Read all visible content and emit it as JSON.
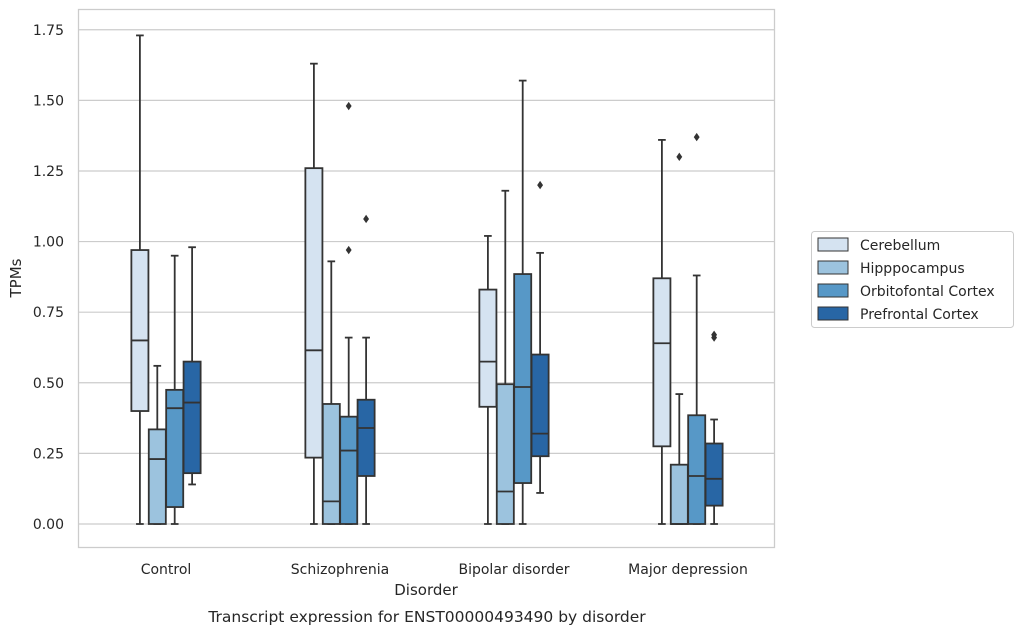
{
  "chart_data": {
    "type": "box",
    "ylabel": "TPMs",
    "xlabel": "Disorder",
    "caption": "Transcript expression for ENST00000493490 by disorder",
    "ylim": [
      -0.085,
      1.82
    ],
    "yticks": [
      0.0,
      0.25,
      0.5,
      0.75,
      1.0,
      1.25,
      1.5,
      1.75
    ],
    "ytick_labels": [
      "0.00",
      "0.25",
      "0.50",
      "0.75",
      "1.00",
      "1.25",
      "1.50",
      "1.75"
    ],
    "grid": "horizontal",
    "legend_position": "right",
    "categories": [
      "Control",
      "Schizophrenia",
      "Bipolar disorder",
      "Major depression"
    ],
    "series": [
      {
        "name": "Cerebellum",
        "color": "#d5e3f1",
        "boxes": [
          {
            "whisker_low": 0.0,
            "q1": 0.4,
            "median": 0.65,
            "q3": 0.97,
            "whisker_high": 1.73,
            "outliers": []
          },
          {
            "whisker_low": 0.0,
            "q1": 0.235,
            "median": 0.615,
            "q3": 1.26,
            "whisker_high": 1.63,
            "outliers": []
          },
          {
            "whisker_low": 0.0,
            "q1": 0.415,
            "median": 0.575,
            "q3": 0.83,
            "whisker_high": 1.02,
            "outliers": []
          },
          {
            "whisker_low": 0.0,
            "q1": 0.275,
            "median": 0.64,
            "q3": 0.87,
            "whisker_high": 1.36,
            "outliers": []
          }
        ]
      },
      {
        "name": "Hipppocampus",
        "color": "#9cc3de",
        "boxes": [
          {
            "whisker_low": 0.0,
            "q1": 0.0,
            "median": 0.23,
            "q3": 0.335,
            "whisker_high": 0.56,
            "outliers": []
          },
          {
            "whisker_low": 0.0,
            "q1": 0.0,
            "median": 0.08,
            "q3": 0.425,
            "whisker_high": 0.93,
            "outliers": []
          },
          {
            "whisker_low": 0.0,
            "q1": 0.0,
            "median": 0.115,
            "q3": 0.495,
            "whisker_high": 1.18,
            "outliers": []
          },
          {
            "whisker_low": 0.0,
            "q1": 0.0,
            "median": 0.0,
            "q3": 0.21,
            "whisker_high": 0.46,
            "outliers": [
              1.3
            ]
          }
        ]
      },
      {
        "name": "Orbitofontal Cortex",
        "color": "#5798c7",
        "boxes": [
          {
            "whisker_low": 0.0,
            "q1": 0.06,
            "median": 0.41,
            "q3": 0.475,
            "whisker_high": 0.95,
            "outliers": []
          },
          {
            "whisker_low": 0.0,
            "q1": 0.0,
            "median": 0.26,
            "q3": 0.38,
            "whisker_high": 0.66,
            "outliers": [
              0.97,
              1.48
            ]
          },
          {
            "whisker_low": 0.0,
            "q1": 0.145,
            "median": 0.485,
            "q3": 0.885,
            "whisker_high": 1.57,
            "outliers": []
          },
          {
            "whisker_low": 0.0,
            "q1": 0.0,
            "median": 0.17,
            "q3": 0.385,
            "whisker_high": 0.88,
            "outliers": [
              1.37
            ]
          }
        ]
      },
      {
        "name": "Prefrontal Cortex",
        "color": "#2866a5",
        "boxes": [
          {
            "whisker_low": 0.14,
            "q1": 0.18,
            "median": 0.43,
            "q3": 0.575,
            "whisker_high": 0.98,
            "outliers": []
          },
          {
            "whisker_low": 0.0,
            "q1": 0.17,
            "median": 0.34,
            "q3": 0.44,
            "whisker_high": 0.66,
            "outliers": [
              1.08
            ]
          },
          {
            "whisker_low": 0.11,
            "q1": 0.24,
            "median": 0.32,
            "q3": 0.6,
            "whisker_high": 0.96,
            "outliers": [
              1.2
            ]
          },
          {
            "whisker_low": 0.0,
            "q1": 0.065,
            "median": 0.16,
            "q3": 0.285,
            "whisker_high": 0.37,
            "outliers": [
              0.66,
              0.67
            ]
          }
        ]
      }
    ]
  }
}
